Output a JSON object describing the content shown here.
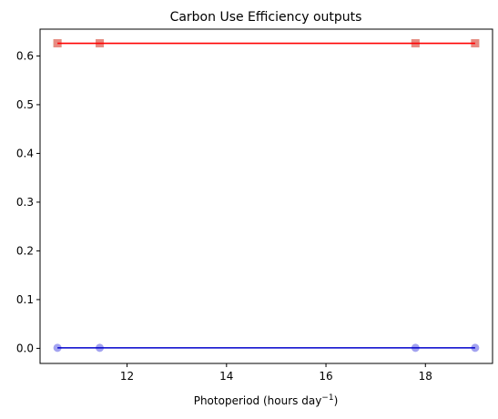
{
  "chart_data": {
    "type": "line",
    "title": "Carbon Use Efficiency outputs",
    "xlabel": "Photoperiod (hours day",
    "xlabel_sup": "−1",
    "xlabel_tail": ")",
    "ylabel": "",
    "xlim": [
      10.25,
      19.35
    ],
    "ylim": [
      -0.031,
      0.655
    ],
    "xticks": [
      12,
      14,
      16,
      18
    ],
    "xtick_labels": [
      "12",
      "14",
      "16",
      "18"
    ],
    "yticks": [
      0.0,
      0.1,
      0.2,
      0.3,
      0.4,
      0.5,
      0.6
    ],
    "ytick_labels": [
      "0.0",
      "0.1",
      "0.2",
      "0.3",
      "0.4",
      "0.5",
      "0.6"
    ],
    "grid": false,
    "legend": "none",
    "x": [
      10.6,
      11.45,
      17.8,
      19.0
    ],
    "series": [
      {
        "marker": "square",
        "color": "#90ee90",
        "marker_only": true,
        "values": [
          0.626,
          0.626,
          0.626,
          0.626
        ]
      },
      {
        "marker": "square",
        "color": "#f08080",
        "line_color": "#ff0000",
        "values": [
          0.626,
          0.626,
          0.626,
          0.626
        ]
      },
      {
        "marker": "circle",
        "color": "#9999ee",
        "line_color": "#0000cc",
        "values": [
          0.001,
          0.001,
          0.001,
          0.001
        ]
      }
    ]
  }
}
